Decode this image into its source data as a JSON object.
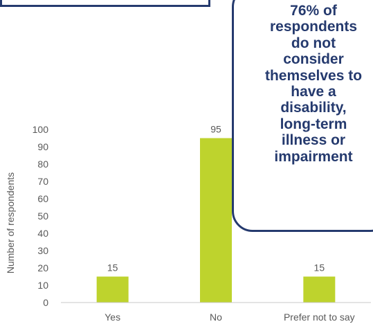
{
  "chart_data": {
    "type": "bar",
    "categories": [
      "Yes",
      "No",
      "Prefer not to say"
    ],
    "values": [
      15,
      95,
      15
    ],
    "data_labels": [
      "15",
      "95",
      "15"
    ],
    "ylabel": "Number of respondents",
    "ylim": [
      0,
      100
    ],
    "yticks": [
      0,
      10,
      20,
      30,
      40,
      50,
      60,
      70,
      80,
      90,
      100
    ],
    "grid": false,
    "bar_color": "#bed32d",
    "axis_color": "#c8c8c8",
    "text_color": "#595959"
  },
  "callout": {
    "text": "76% of respondents do not consider themselves to have a disability, long-term illness or impairment",
    "border_color": "#253a6e"
  }
}
